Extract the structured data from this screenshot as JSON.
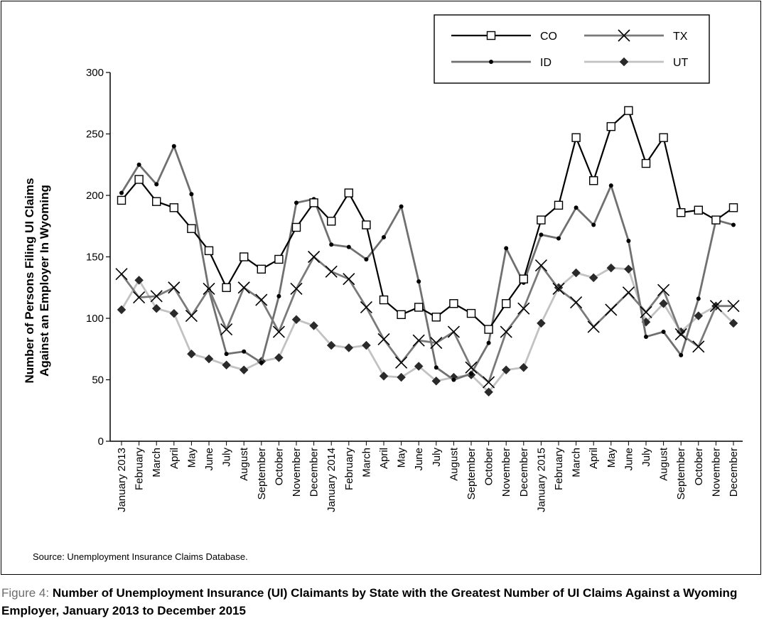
{
  "figure": {
    "label": "Figure 4:",
    "title": "Number of Unemployment Insurance (UI) Claimants by State with the Greatest Number of UI Claims Against a Wyoming Employer, January 2013 to December 2015",
    "source": "Source: Unemployment Insurance Claims Database."
  },
  "chart_data": {
    "type": "line",
    "title": "",
    "xlabel": "",
    "ylabel": "Number of Persons Filing UI Claims Against an Employer In Wyoming",
    "ylabel_lines": [
      "Number of Persons Filing UI Claims",
      "Against an Employer In Wyoming"
    ],
    "ylim": [
      0,
      300
    ],
    "yticks": [
      0,
      50,
      100,
      150,
      200,
      250,
      300
    ],
    "grid": false,
    "legend_position": "top-right",
    "categories": [
      "January 2013",
      "February",
      "March",
      "April",
      "May",
      "June",
      "July",
      "August",
      "September",
      "October",
      "November",
      "December",
      "January 2014",
      "February",
      "March",
      "April",
      "May",
      "June",
      "July",
      "August",
      "September",
      "October",
      "November",
      "December",
      "January 2015",
      "February",
      "March",
      "April",
      "May",
      "June",
      "July",
      "August",
      "September",
      "October",
      "November",
      "December"
    ],
    "series": [
      {
        "name": "CO",
        "color": "#000000",
        "marker": "square",
        "values": [
          196,
          213,
          195,
          190,
          173,
          155,
          125,
          150,
          140,
          148,
          174,
          194,
          179,
          202,
          176,
          115,
          103,
          109,
          101,
          112,
          104,
          91,
          112,
          132,
          180,
          192,
          247,
          212,
          256,
          269,
          226,
          247,
          186,
          188,
          180,
          190
        ]
      },
      {
        "name": "TX",
        "color": "#7a7a7a",
        "marker": "x",
        "values": [
          136,
          117,
          118,
          125,
          102,
          124,
          91,
          125,
          115,
          89,
          124,
          150,
          138,
          132,
          109,
          83,
          64,
          82,
          80,
          89,
          60,
          48,
          89,
          108,
          143,
          124,
          113,
          93,
          107,
          121,
          105,
          123,
          87,
          77,
          110,
          110
        ]
      },
      {
        "name": "ID",
        "color": "#707070",
        "marker": "dot",
        "values": [
          202,
          225,
          209,
          240,
          201,
          123,
          71,
          73,
          64,
          118,
          194,
          197,
          160,
          158,
          148,
          166,
          191,
          130,
          60,
          50,
          55,
          80,
          157,
          129,
          168,
          165,
          190,
          176,
          208,
          163,
          85,
          89,
          70,
          116,
          180,
          176
        ]
      },
      {
        "name": "UT",
        "color": "#c2c2c2",
        "marker": "diamond",
        "values": [
          107,
          131,
          108,
          104,
          71,
          67,
          62,
          58,
          65,
          68,
          99,
          94,
          78,
          76,
          78,
          53,
          52,
          61,
          49,
          52,
          54,
          40,
          58,
          60,
          96,
          125,
          137,
          133,
          141,
          140,
          97,
          112,
          89,
          102,
          110,
          96
        ]
      }
    ]
  }
}
